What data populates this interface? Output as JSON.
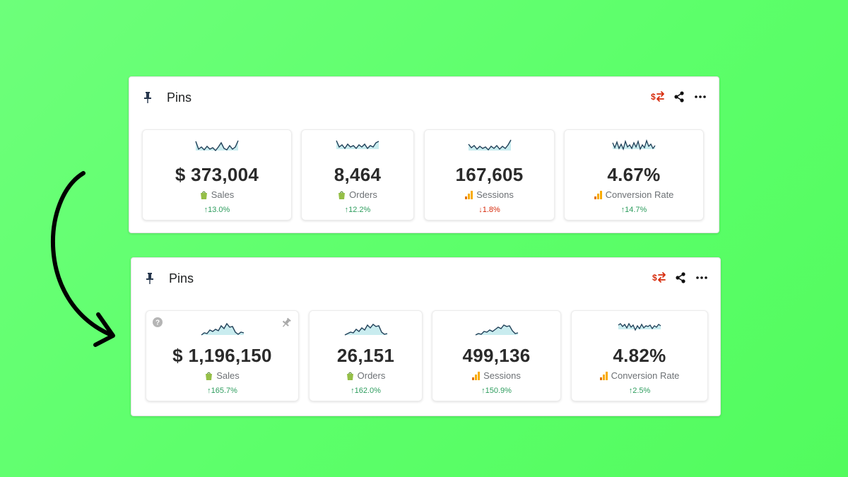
{
  "panels": [
    {
      "title": "Pins",
      "cards": [
        {
          "value": "$ 373,004",
          "label": "Sales",
          "source": "shopify-icon",
          "change": "↑13.0%",
          "direction": "up"
        },
        {
          "value": "8,464",
          "label": "Orders",
          "source": "shopify-icon",
          "change": "↑12.2%",
          "direction": "up"
        },
        {
          "value": "167,605",
          "label": "Sessions",
          "source": "analytics-icon",
          "change": "↓1.8%",
          "direction": "down"
        },
        {
          "value": "4.67%",
          "label": "Conversion Rate",
          "source": "analytics-icon",
          "change": "↑14.7%",
          "direction": "up"
        }
      ]
    },
    {
      "title": "Pins",
      "cards": [
        {
          "value": "$ 1,196,150",
          "label": "Sales",
          "source": "shopify-icon",
          "change": "↑165.7%",
          "direction": "up"
        },
        {
          "value": "26,151",
          "label": "Orders",
          "source": "shopify-icon",
          "change": "↑162.0%",
          "direction": "up"
        },
        {
          "value": "499,136",
          "label": "Sessions",
          "source": "analytics-icon",
          "change": "↑150.9%",
          "direction": "up"
        },
        {
          "value": "4.82%",
          "label": "Conversion Rate",
          "source": "analytics-icon",
          "change": "↑2.5%",
          "direction": "up"
        }
      ]
    }
  ],
  "colors": {
    "background": "#5cff6a",
    "sparkline_stroke": "#1f3f57",
    "sparkline_fill": "#c9ecef",
    "positive": "#2e9d5e",
    "negative": "#d72c0d",
    "shopify": "#95bf47",
    "analytics": "#f9ab00"
  }
}
